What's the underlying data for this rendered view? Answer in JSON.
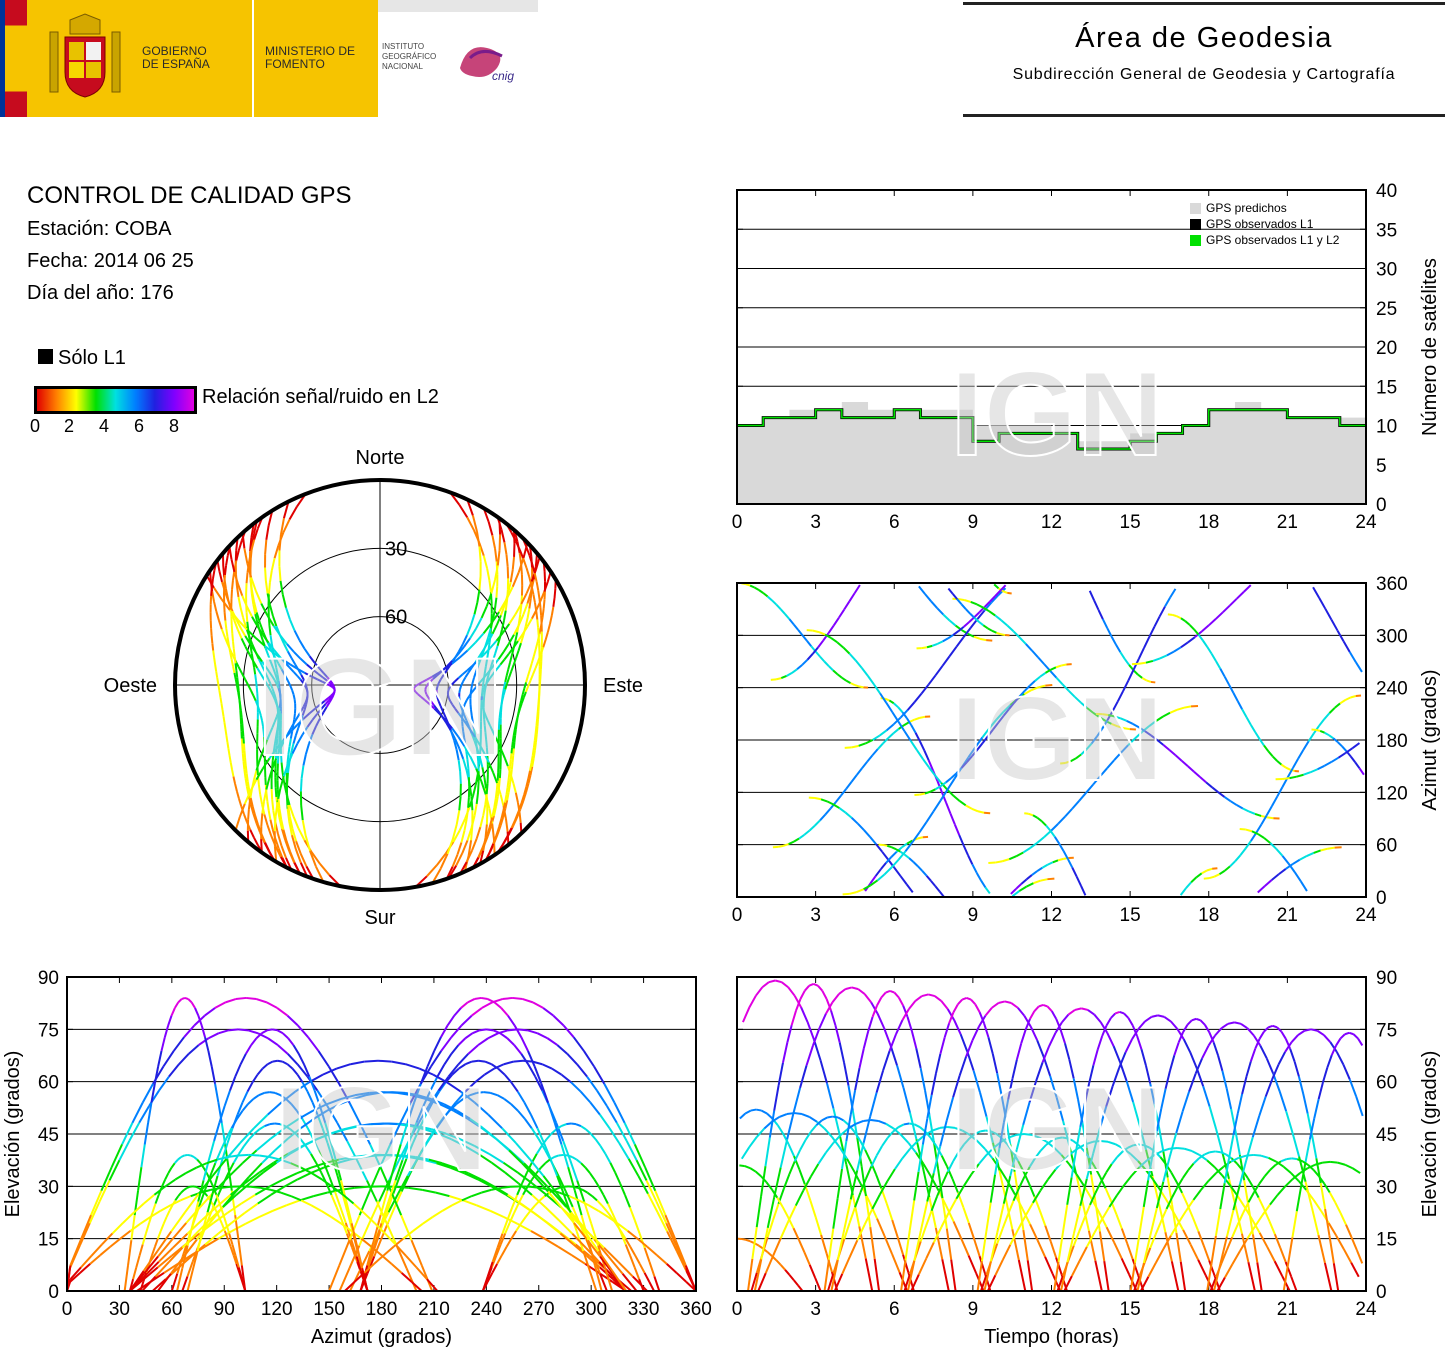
{
  "header": {
    "gobierno": "GOBIERNO DE ESPAÑA",
    "ministerio": "MINISTERIO DE FOMENTO",
    "instituto": "INSTITUTO GEOGRÁFICO NACIONAL",
    "cnig": "cnig",
    "area_title": "Área de Geodesia",
    "area_subtitle": "Subdirección General de Geodesia y Cartografía"
  },
  "info": {
    "title": "CONTROL DE CALIDAD GPS",
    "station": "Estación: COBA",
    "date": "Fecha: 2014 06 25",
    "doy": "Día del año: 176"
  },
  "legend": {
    "solo_l1": "Sólo L1",
    "snr_label": "Relación señal/ruido en L2",
    "snr_ticks": [
      "0",
      "2",
      "4",
      "6",
      "8"
    ]
  },
  "watermark": "IGN",
  "colors": {
    "predicted": "#d9d9d9",
    "observed_l1": "#000000",
    "observed_l1l2": "#00e000",
    "snr_scale": [
      "#e00000",
      "#ff8000",
      "#ffff00",
      "#00e000",
      "#00e0e0",
      "#0080ff",
      "#2020e0",
      "#8000ff",
      "#e000e0"
    ]
  },
  "chart_data": [
    {
      "id": "skyplot",
      "type": "scatter",
      "title": "",
      "directions": {
        "north": "Norte",
        "south": "Sur",
        "east": "Este",
        "west": "Oeste"
      },
      "ring_labels": [
        "30",
        "60"
      ]
    },
    {
      "id": "satcount",
      "type": "area",
      "ylabel": "Número de satélites",
      "xlim": [
        0,
        24
      ],
      "ylim": [
        0,
        40
      ],
      "xticks": [
        0,
        3,
        6,
        9,
        12,
        15,
        18,
        21,
        24
      ],
      "yticks": [
        0,
        5,
        10,
        15,
        20,
        25,
        30,
        35,
        40
      ],
      "legend": [
        "GPS predichos",
        "GPS observados L1",
        "GPS observados L1 y L2"
      ],
      "series": [
        {
          "name": "GPS predichos",
          "x": [
            0,
            1,
            2,
            3,
            4,
            5,
            6,
            7,
            8,
            9,
            10,
            11,
            12,
            13,
            14,
            15,
            16,
            17,
            18,
            19,
            20,
            21,
            22,
            23,
            24
          ],
          "values": [
            10,
            11,
            12,
            12,
            13,
            12,
            12,
            12,
            12,
            10,
            10,
            10,
            9,
            8,
            8,
            9,
            9,
            10,
            12,
            13,
            12,
            11,
            11,
            11,
            10
          ]
        },
        {
          "name": "GPS observados L1",
          "x": [
            0,
            1,
            2,
            3,
            4,
            5,
            6,
            7,
            8,
            9,
            10,
            11,
            12,
            13,
            14,
            15,
            16,
            17,
            18,
            19,
            20,
            21,
            22,
            23,
            24
          ],
          "values": [
            10,
            11,
            11,
            12,
            11,
            11,
            12,
            11,
            11,
            8,
            9,
            9,
            9,
            7,
            7,
            8,
            9,
            10,
            12,
            12,
            12,
            11,
            11,
            10,
            10
          ]
        },
        {
          "name": "GPS observados L1 y L2",
          "x": [
            0,
            1,
            2,
            3,
            4,
            5,
            6,
            7,
            8,
            9,
            10,
            11,
            12,
            13,
            14,
            15,
            16,
            17,
            18,
            19,
            20,
            21,
            22,
            23,
            24
          ],
          "values": [
            10,
            11,
            11,
            12,
            11,
            11,
            12,
            11,
            11,
            8,
            9,
            9,
            9,
            7,
            7,
            8,
            9,
            10,
            12,
            12,
            12,
            11,
            11,
            10,
            10
          ]
        }
      ]
    },
    {
      "id": "azimuth_time",
      "type": "scatter",
      "ylabel": "Azimut (grados)",
      "xlim": [
        0,
        24
      ],
      "ylim": [
        0,
        360
      ],
      "xticks": [
        0,
        3,
        6,
        9,
        12,
        15,
        18,
        21,
        24
      ],
      "yticks": [
        0,
        60,
        120,
        180,
        240,
        300,
        360
      ]
    },
    {
      "id": "elev_azimuth",
      "type": "scatter",
      "xlabel": "Azimut (grados)",
      "ylabel": "Elevación (grados)",
      "xlim": [
        0,
        360
      ],
      "ylim": [
        0,
        90
      ],
      "xticks": [
        0,
        30,
        60,
        90,
        120,
        150,
        180,
        210,
        240,
        270,
        300,
        330,
        360
      ],
      "yticks": [
        0,
        15,
        30,
        45,
        60,
        75,
        90
      ]
    },
    {
      "id": "elev_time",
      "type": "scatter",
      "xlabel": "Tiempo (horas)",
      "ylabel": "Elevación (grados)",
      "xlim": [
        0,
        24
      ],
      "ylim": [
        0,
        90
      ],
      "xticks": [
        0,
        3,
        6,
        9,
        12,
        15,
        18,
        21,
        24
      ],
      "yticks": [
        0,
        15,
        30,
        45,
        60,
        75,
        90
      ]
    }
  ]
}
